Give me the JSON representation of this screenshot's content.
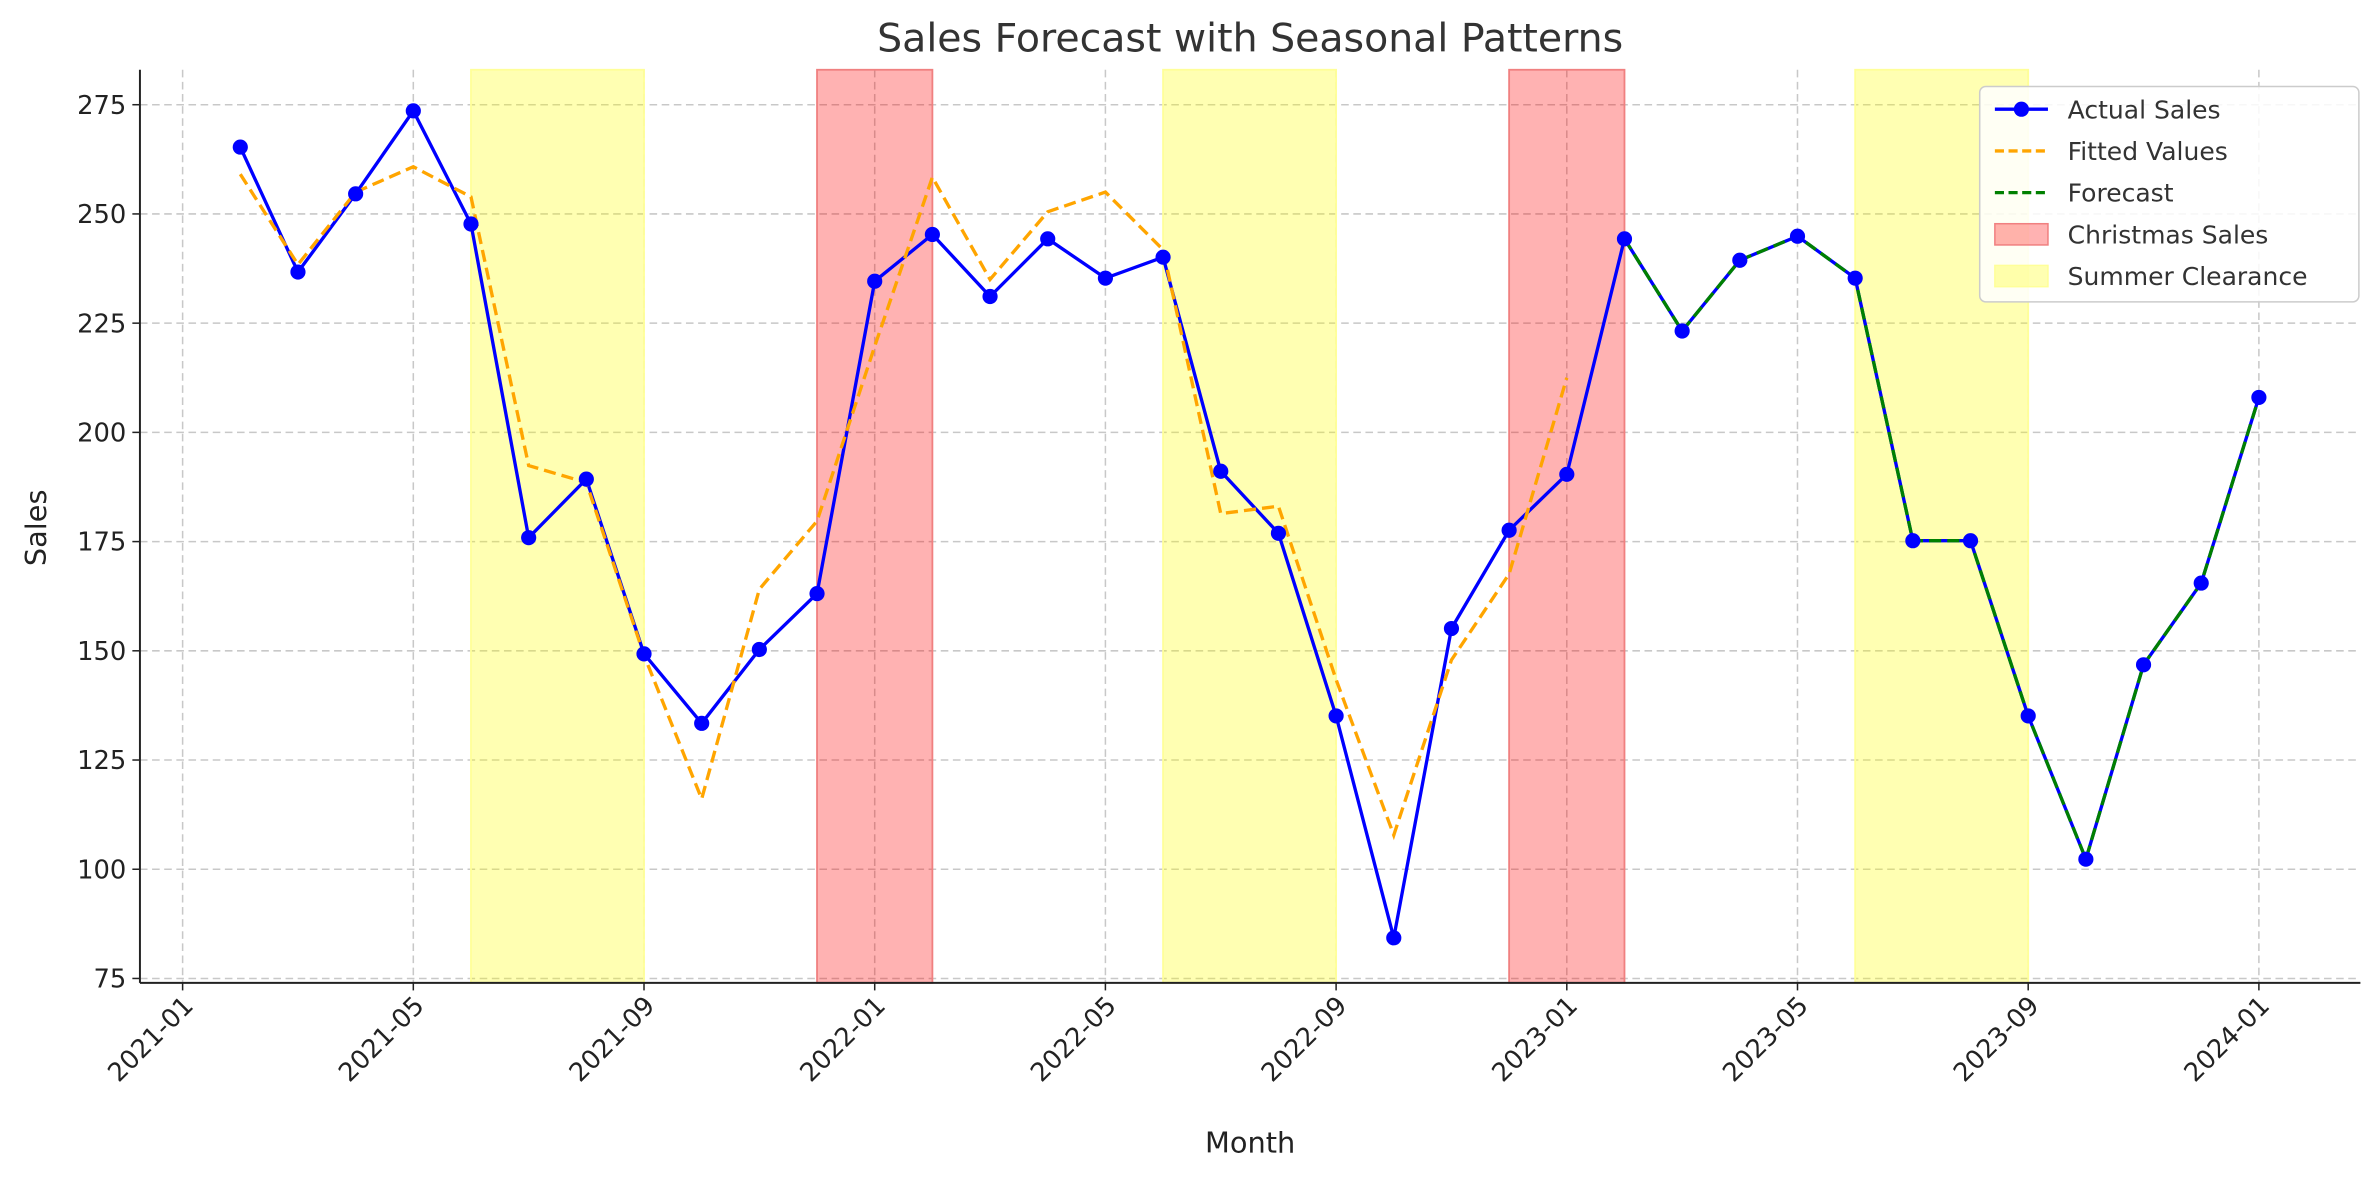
{
  "chart_data": {
    "type": "line",
    "title": "Sales Forecast with Seasonal Patterns",
    "xlabel": "Month",
    "ylabel": "Sales",
    "ylim": [
      74,
      283
    ],
    "xlim_months_from_2021_01": [
      -0.74,
      37.76
    ],
    "grid": true,
    "legend_position": "top-right",
    "x_ticks": [
      "2021-01",
      "2021-05",
      "2021-09",
      "2022-01",
      "2022-05",
      "2022-09",
      "2023-01",
      "2023-05",
      "2023-09",
      "2024-01"
    ],
    "y_ticks": [
      75,
      100,
      125,
      150,
      175,
      200,
      225,
      250,
      275
    ],
    "series": [
      {
        "name": "Actual Sales",
        "color": "#0000ff",
        "style": "solid-markers",
        "x": [
          "2021-02",
          "2021-03",
          "2021-04",
          "2021-05",
          "2021-06",
          "2021-07",
          "2021-08",
          "2021-09",
          "2021-10",
          "2021-11",
          "2021-12",
          "2022-01",
          "2022-02",
          "2022-03",
          "2022-04",
          "2022-05",
          "2022-06",
          "2022-07",
          "2022-08",
          "2022-09",
          "2022-10",
          "2022-11",
          "2022-12",
          "2023-01",
          "2023-02",
          "2023-03",
          "2023-04",
          "2023-05",
          "2023-06",
          "2023-07",
          "2023-08",
          "2023-09",
          "2023-10",
          "2023-11",
          "2023-12",
          "2024-01"
        ],
        "values": [
          265.3,
          236.7,
          254.6,
          273.6,
          247.7,
          175.9,
          189.3,
          149.3,
          133.4,
          150.3,
          163.1,
          234.6,
          245.3,
          231.1,
          244.3,
          235.3,
          240.1,
          191.1,
          176.9,
          135.1,
          84.3,
          155.1,
          177.6,
          190.4,
          244.3,
          223.2,
          239.4,
          244.9,
          235.3,
          175.2,
          175.2,
          135.1,
          102.3,
          146.8,
          165.5,
          208.0
        ]
      },
      {
        "name": "Fitted Values",
        "color": "#ffa500",
        "style": "dashed",
        "x": [
          "2021-02",
          "2021-03",
          "2021-04",
          "2021-05",
          "2021-06",
          "2021-07",
          "2021-08",
          "2021-09",
          "2021-10",
          "2021-11",
          "2021-12",
          "2022-01",
          "2022-02",
          "2022-03",
          "2022-04",
          "2022-05",
          "2022-06",
          "2022-07",
          "2022-08",
          "2022-09",
          "2022-10",
          "2022-11",
          "2022-12",
          "2023-01"
        ],
        "values": [
          259.1,
          238.4,
          255.0,
          260.8,
          253.9,
          192.4,
          188.5,
          149.0,
          116.1,
          164.1,
          179.7,
          219.7,
          258.4,
          235.0,
          250.5,
          255.0,
          241.8,
          181.4,
          183.1,
          143.4,
          107.8,
          147.9,
          167.6,
          212.5
        ]
      },
      {
        "name": "Forecast",
        "color": "#008000",
        "style": "dashed",
        "x": [
          "2023-02",
          "2023-03",
          "2023-04",
          "2023-05",
          "2023-06",
          "2023-07",
          "2023-08",
          "2023-09",
          "2023-10",
          "2023-11",
          "2023-12",
          "2024-01"
        ],
        "values": [
          244.3,
          223.2,
          239.4,
          244.9,
          235.3,
          175.2,
          175.2,
          135.1,
          102.3,
          146.8,
          165.5,
          208.0
        ]
      }
    ],
    "bands": [
      {
        "name": "Christmas Sales",
        "color": "#ff0000",
        "alpha": 0.3,
        "ranges": [
          [
            "2021-12",
            "2022-02"
          ],
          [
            "2022-12",
            "2023-02"
          ]
        ]
      },
      {
        "name": "Summer Clearance",
        "color": "#ffff00",
        "alpha": 0.3,
        "ranges": [
          [
            "2021-06",
            "2021-09"
          ],
          [
            "2022-06",
            "2022-09"
          ],
          [
            "2023-06",
            "2023-09"
          ]
        ]
      }
    ],
    "legend": [
      "Actual Sales",
      "Fitted Values",
      "Forecast",
      "Christmas Sales",
      "Summer Clearance"
    ]
  }
}
